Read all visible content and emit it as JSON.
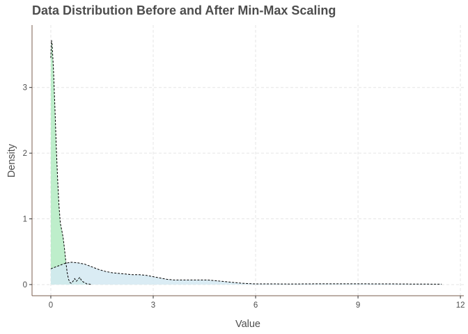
{
  "chart_data": {
    "type": "area",
    "title": "Data Distribution Before and After Min-Max Scaling",
    "xlabel": "Value",
    "ylabel": "Density",
    "xlim": [
      -0.55,
      12.1
    ],
    "ylim": [
      -0.17,
      3.95
    ],
    "x_ticks": [
      0,
      3,
      6,
      9,
      12
    ],
    "y_ticks": [
      0,
      1,
      2,
      3
    ],
    "grid": true,
    "legend": "none",
    "series": [
      {
        "color": "#b3ebc2",
        "x": [
          0.0,
          0.02,
          0.04,
          0.08,
          0.12,
          0.16,
          0.2,
          0.24,
          0.28,
          0.32,
          0.36,
          0.4,
          0.44,
          0.48,
          0.52,
          0.56,
          0.6,
          0.65,
          0.7,
          0.75,
          0.8,
          0.85,
          0.9,
          0.95,
          1.0,
          1.05,
          1.1,
          1.15,
          1.2
        ],
        "y": [
          3.45,
          3.72,
          3.65,
          3.25,
          2.7,
          2.1,
          1.6,
          1.2,
          0.93,
          0.83,
          0.72,
          0.55,
          0.35,
          0.18,
          0.08,
          0.03,
          0.02,
          0.05,
          0.09,
          0.05,
          0.08,
          0.11,
          0.06,
          0.04,
          0.03,
          0.01,
          0.01,
          0.005,
          0.0
        ]
      },
      {
        "color": "#d4e9f2",
        "x": [
          0.0,
          0.1,
          0.2,
          0.3,
          0.4,
          0.5,
          0.6,
          0.8,
          1.0,
          1.2,
          1.4,
          1.6,
          1.8,
          2.0,
          2.2,
          2.4,
          2.6,
          2.8,
          3.0,
          3.2,
          3.4,
          3.6,
          3.8,
          4.0,
          4.2,
          4.4,
          4.6,
          4.8,
          5.0,
          5.2,
          5.4,
          5.6,
          5.8,
          6.0,
          6.5,
          7.0,
          7.5,
          8.0,
          8.5,
          9.0,
          9.5,
          10.0,
          10.5,
          11.0,
          11.45
        ],
        "y": [
          0.24,
          0.26,
          0.28,
          0.3,
          0.32,
          0.33,
          0.34,
          0.33,
          0.31,
          0.27,
          0.23,
          0.2,
          0.18,
          0.17,
          0.16,
          0.15,
          0.15,
          0.14,
          0.12,
          0.1,
          0.08,
          0.07,
          0.07,
          0.07,
          0.07,
          0.07,
          0.07,
          0.06,
          0.05,
          0.04,
          0.03,
          0.02,
          0.015,
          0.01,
          0.01,
          0.008,
          0.01,
          0.012,
          0.012,
          0.012,
          0.01,
          0.01,
          0.008,
          0.007,
          0.006
        ]
      }
    ]
  }
}
